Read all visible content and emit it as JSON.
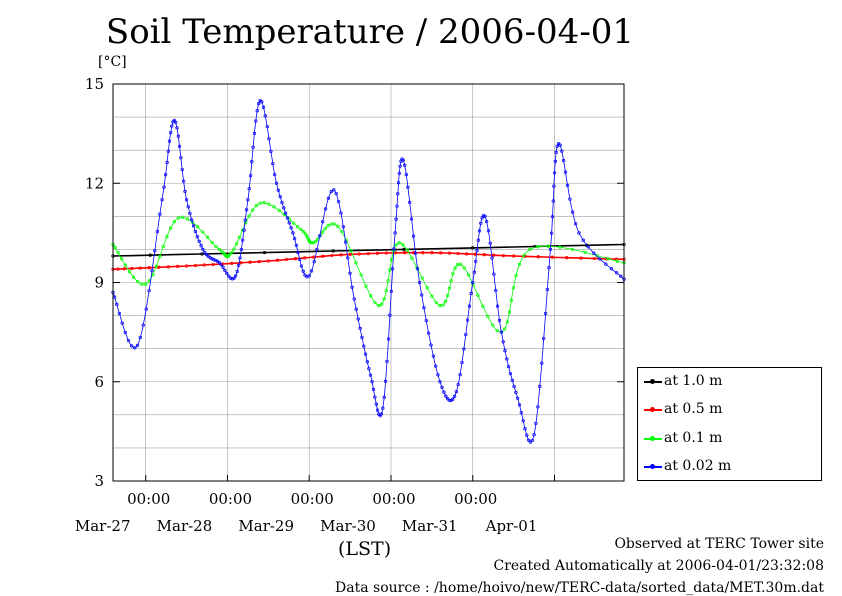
{
  "chart_data": {
    "type": "line",
    "title": "Soil Temperature / 2006-04-01",
    "yunit": "[°C]",
    "xlabel": "(LST)",
    "ylim": [
      3,
      15
    ],
    "yticks": [
      3,
      6,
      9,
      12,
      15
    ],
    "xlim_day": [
      26.6,
      32.85
    ],
    "xticks": [
      {
        "time": "00:00",
        "date": "Mar-27",
        "day": 27
      },
      {
        "time": "00:00",
        "date": "Mar-28",
        "day": 28
      },
      {
        "time": "00:00",
        "date": "Mar-29",
        "day": 29
      },
      {
        "time": "00:00",
        "date": "Mar-30",
        "day": 30
      },
      {
        "time": "00:00",
        "date": "Mar-31",
        "day": 31
      },
      {
        "time": "",
        "date": "Apr-01",
        "day": 32
      }
    ],
    "grid": true,
    "legend_position": "right",
    "series": [
      {
        "name": "at 1.0 m",
        "color": "#000000",
        "points": [
          [
            26.6,
            9.8
          ],
          [
            32.85,
            10.15
          ]
        ]
      },
      {
        "name": "at 0.5 m",
        "color": "#ff0000",
        "points": [
          [
            26.6,
            9.4
          ],
          [
            27.5,
            9.5
          ],
          [
            28.5,
            9.65
          ],
          [
            29.5,
            9.85
          ],
          [
            30.5,
            9.9
          ],
          [
            31.5,
            9.8
          ],
          [
            32.85,
            9.7
          ]
        ]
      },
      {
        "name": "at 0.1 m",
        "color": "#00ff00",
        "points": [
          [
            26.6,
            10.15
          ],
          [
            27.0,
            8.95
          ],
          [
            27.4,
            10.95
          ],
          [
            27.9,
            10.0
          ],
          [
            28.05,
            9.9
          ],
          [
            28.4,
            11.4
          ],
          [
            28.9,
            10.6
          ],
          [
            29.05,
            10.2
          ],
          [
            29.35,
            10.7
          ],
          [
            29.85,
            8.3
          ],
          [
            30.1,
            10.2
          ],
          [
            30.6,
            8.3
          ],
          [
            30.85,
            9.55
          ],
          [
            31.35,
            7.5
          ],
          [
            31.7,
            10.0
          ],
          [
            32.85,
            9.6
          ]
        ]
      },
      {
        "name": "at 0.02 m",
        "color": "#0000ff",
        "points": [
          [
            26.6,
            8.7
          ],
          [
            26.9,
            7.1
          ],
          [
            27.2,
            11.5
          ],
          [
            27.35,
            13.9
          ],
          [
            27.5,
            11.5
          ],
          [
            27.7,
            10.0
          ],
          [
            27.9,
            9.6
          ],
          [
            28.1,
            9.2
          ],
          [
            28.25,
            11.5
          ],
          [
            28.4,
            14.5
          ],
          [
            28.6,
            12.0
          ],
          [
            28.8,
            10.5
          ],
          [
            29.0,
            9.2
          ],
          [
            29.3,
            11.8
          ],
          [
            29.55,
            8.5
          ],
          [
            29.75,
            6.2
          ],
          [
            29.9,
            5.2
          ],
          [
            30.05,
            10.5
          ],
          [
            30.15,
            12.7
          ],
          [
            30.35,
            9.0
          ],
          [
            30.6,
            6.0
          ],
          [
            30.8,
            5.7
          ],
          [
            31.0,
            9.0
          ],
          [
            31.15,
            11.0
          ],
          [
            31.35,
            7.5
          ],
          [
            31.55,
            5.5
          ],
          [
            31.75,
            4.4
          ],
          [
            31.95,
            10.0
          ],
          [
            32.05,
            13.2
          ],
          [
            32.3,
            10.5
          ],
          [
            32.85,
            9.1
          ]
        ]
      }
    ]
  },
  "footer": {
    "observed": "Observed at TERC Tower site",
    "created": "Created Automatically at 2006-04-01/23:32:08",
    "source": "Data source : /home/hoivo/new/TERC-data/sorted_data/MET.30m.dat"
  }
}
